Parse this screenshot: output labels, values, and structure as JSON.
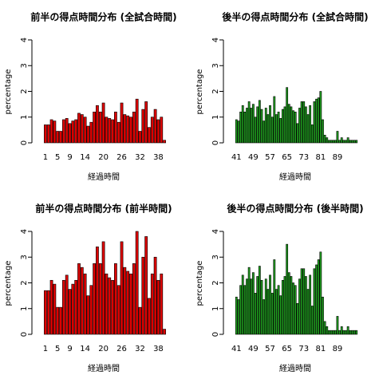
{
  "chart_data": [
    {
      "type": "bar",
      "title": "前半の得点時間分布 (全試合時間)",
      "xlabel": "経過時間",
      "ylabel": "percentage",
      "color": "#dd0000",
      "ylim": [
        0,
        4
      ],
      "yticks": [
        0,
        1,
        2,
        3,
        4
      ],
      "categories": [
        "1",
        null,
        null,
        null,
        "5",
        null,
        null,
        null,
        "9",
        null,
        null,
        null,
        null,
        "14",
        null,
        null,
        null,
        null,
        null,
        "20",
        null,
        null,
        null,
        null,
        null,
        "26",
        null,
        null,
        null,
        null,
        null,
        "32",
        null,
        null,
        null,
        null,
        null,
        "38",
        null,
        null
      ],
      "values": [
        0.7,
        0.7,
        0.9,
        0.85,
        0.45,
        0.45,
        0.9,
        0.95,
        0.75,
        0.85,
        0.9,
        1.15,
        1.1,
        1.0,
        0.65,
        0.8,
        1.2,
        1.45,
        1.2,
        1.55,
        1.0,
        0.95,
        0.9,
        1.2,
        0.8,
        1.55,
        1.1,
        1.05,
        1.0,
        1.2,
        1.7,
        0.45,
        1.3,
        1.6,
        0.6,
        1.0,
        1.3,
        0.9,
        1.0,
        0.1
      ]
    },
    {
      "type": "bar",
      "title": "後半の得点時間分布 (全試合時間)",
      "xlabel": "経過時間",
      "ylabel": "percentage",
      "color": "#1fa01f",
      "ylim": [
        0,
        4
      ],
      "yticks": [
        0,
        1,
        2,
        3,
        4
      ],
      "categories": [
        "41",
        null,
        null,
        null,
        null,
        null,
        null,
        null,
        "49",
        null,
        null,
        null,
        null,
        null,
        null,
        null,
        "57",
        null,
        null,
        null,
        null,
        null,
        null,
        null,
        "65",
        null,
        null,
        null,
        null,
        null,
        null,
        null,
        "73",
        null,
        null,
        null,
        null,
        null,
        null,
        null,
        "81",
        null,
        null,
        null,
        null,
        null,
        null,
        null,
        "89",
        null,
        null,
        null,
        null,
        null,
        null,
        null,
        null,
        null
      ],
      "values": [
        0.9,
        0.85,
        1.2,
        1.45,
        1.2,
        1.35,
        1.6,
        1.35,
        1.5,
        1.0,
        1.4,
        1.65,
        1.3,
        0.85,
        1.35,
        1.1,
        1.45,
        1.0,
        1.8,
        1.1,
        1.2,
        0.95,
        1.3,
        1.4,
        2.15,
        1.5,
        1.4,
        1.25,
        1.2,
        0.75,
        1.35,
        1.6,
        1.6,
        1.4,
        1.1,
        1.45,
        0.7,
        1.6,
        1.7,
        1.75,
        2.0,
        0.9,
        0.3,
        0.2,
        0.1,
        0.1,
        0.1,
        0.1,
        0.45,
        0.1,
        0.2,
        0.1,
        0.1,
        0.2,
        0.1,
        0.1,
        0.1,
        0.1
      ]
    },
    {
      "type": "bar",
      "title": "前半の得点時間分布 (前半時間)",
      "xlabel": "経過時間",
      "ylabel": "percentage",
      "color": "#dd0000",
      "ylim": [
        0,
        4
      ],
      "yticks": [
        0,
        1,
        2,
        3,
        4
      ],
      "categories": [
        "1",
        null,
        null,
        null,
        "5",
        null,
        null,
        null,
        "9",
        null,
        null,
        null,
        null,
        "14",
        null,
        null,
        null,
        null,
        null,
        "20",
        null,
        null,
        null,
        null,
        null,
        "26",
        null,
        null,
        null,
        null,
        null,
        "32",
        null,
        null,
        null,
        null,
        null,
        "38",
        null,
        null
      ],
      "values": [
        1.7,
        1.7,
        2.1,
        1.95,
        1.05,
        1.05,
        2.1,
        2.3,
        1.75,
        1.95,
        2.1,
        2.75,
        2.6,
        2.35,
        1.5,
        1.9,
        2.75,
        3.4,
        2.75,
        3.6,
        2.35,
        2.2,
        2.1,
        2.75,
        1.9,
        3.6,
        2.6,
        2.45,
        2.35,
        2.75,
        4.0,
        1.05,
        3.0,
        3.8,
        1.4,
        2.35,
        3.0,
        2.1,
        2.35,
        0.2
      ]
    },
    {
      "type": "bar",
      "title": "後半の得点時間分布 (後半時間)",
      "xlabel": "経過時間",
      "ylabel": "percentage",
      "color": "#1fa01f",
      "ylim": [
        0,
        4
      ],
      "yticks": [
        0,
        1,
        2,
        3,
        4
      ],
      "categories": [
        "41",
        null,
        null,
        null,
        null,
        null,
        null,
        null,
        "49",
        null,
        null,
        null,
        null,
        null,
        null,
        null,
        "57",
        null,
        null,
        null,
        null,
        null,
        null,
        null,
        "65",
        null,
        null,
        null,
        null,
        null,
        null,
        null,
        "73",
        null,
        null,
        null,
        null,
        null,
        null,
        null,
        "81",
        null,
        null,
        null,
        null,
        null,
        null,
        null,
        "89",
        null,
        null,
        null,
        null,
        null,
        null,
        null,
        null,
        null
      ],
      "values": [
        1.45,
        1.35,
        1.9,
        2.3,
        1.9,
        2.15,
        2.6,
        2.15,
        2.4,
        1.6,
        2.25,
        2.65,
        2.1,
        1.35,
        2.15,
        1.75,
        2.3,
        1.6,
        2.9,
        1.75,
        1.9,
        1.5,
        2.1,
        2.25,
        3.5,
        2.4,
        2.25,
        2.0,
        1.9,
        1.2,
        2.15,
        2.55,
        2.55,
        2.25,
        1.75,
        2.3,
        1.1,
        2.55,
        2.7,
        2.9,
        3.2,
        1.45,
        0.5,
        0.3,
        0.15,
        0.15,
        0.15,
        0.15,
        0.7,
        0.15,
        0.3,
        0.15,
        0.15,
        0.3,
        0.15,
        0.15,
        0.15,
        0.15
      ]
    }
  ]
}
